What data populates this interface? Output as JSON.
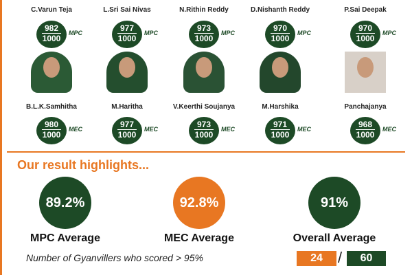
{
  "students": [
    {
      "name": "C.Varun Teja",
      "score": "982",
      "total": "1000",
      "stream": "MPC"
    },
    {
      "name": "L.Sri Sai Nivas",
      "score": "977",
      "total": "1000",
      "stream": "MPC"
    },
    {
      "name": "N.Rithin Reddy",
      "score": "973",
      "total": "1000",
      "stream": "MPC"
    },
    {
      "name": "D.Nishanth Reddy",
      "score": "970",
      "total": "1000",
      "stream": "MPC"
    },
    {
      "name": "P.Sai Deepak",
      "score": "970",
      "total": "1000",
      "stream": "MPC"
    },
    {
      "name": "B.L.K.Samhitha",
      "score": "980",
      "total": "1000",
      "stream": "MEC"
    },
    {
      "name": "M.Haritha",
      "score": "977",
      "total": "1000",
      "stream": "MEC"
    },
    {
      "name": "V.Keerthi Soujanya",
      "score": "973",
      "total": "1000",
      "stream": "MEC"
    },
    {
      "name": "M.Harshika",
      "score": "971",
      "total": "1000",
      "stream": "MEC"
    },
    {
      "name": "Panchajanya",
      "score": "968",
      "total": "1000",
      "stream": "MEC"
    }
  ],
  "highlights": {
    "title": "Our result highlights...",
    "averages": [
      {
        "value": "89.2%",
        "label": "MPC Average"
      },
      {
        "value": "92.8%",
        "label": "MEC Average"
      },
      {
        "value": "91%",
        "label": "Overall Average"
      }
    ],
    "note": "Number of Gyanvillers who scored > 95%",
    "count": "24",
    "separator": "/",
    "total": "60"
  }
}
